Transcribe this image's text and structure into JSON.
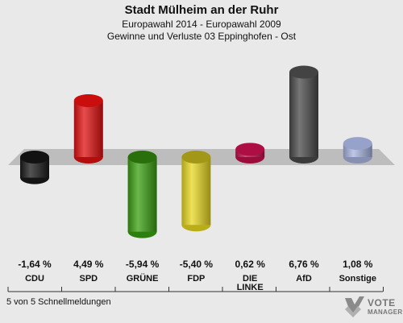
{
  "header": {
    "title": "Stadt Mülheim an der Ruhr",
    "subtitle1": "Europawahl 2014 - Europawahl 2009",
    "subtitle2": "Gewinne und Verluste 03 Eppinghofen - Ost"
  },
  "footer": {
    "text": "5 von 5 Schnellmeldungen"
  },
  "logo": {
    "line1": "VOTE",
    "line2": "MANAGER",
    "icon": "checkmark-x-icon"
  },
  "chart_data": {
    "type": "bar",
    "title": "Stadt Mülheim an der Ruhr",
    "subtitle": "Gewinne und Verluste 03 Eppinghofen - Ost",
    "categories": [
      "CDU",
      "SPD",
      "GRÜNE",
      "FDP",
      "DIE LINKE",
      "AfD",
      "Sonstige"
    ],
    "category_display": [
      "CDU",
      "SPD",
      "GRÜNE",
      "FDP",
      "DIE\nLINKE",
      "AfD",
      "Sonstige"
    ],
    "values": [
      -1.64,
      4.49,
      -5.94,
      -5.4,
      0.62,
      6.76,
      1.08
    ],
    "value_labels": [
      "-1,64 %",
      "4,49 %",
      "-5,94 %",
      "-5,40 %",
      "0,62 %",
      "6,76 %",
      "1,08 %"
    ],
    "colors": [
      "#1a1a1a",
      "#e01010",
      "#3aa012",
      "#e8d820",
      "#c0104a",
      "#4a4a4a",
      "#a8b4e0"
    ],
    "ylim": [
      -7,
      7
    ],
    "grid": false
  }
}
